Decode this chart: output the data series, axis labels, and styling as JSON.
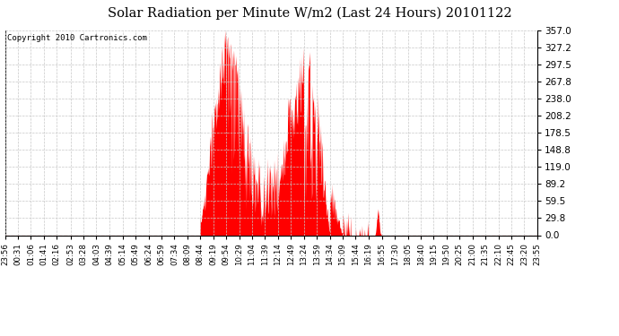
{
  "title": "Solar Radiation per Minute W/m2 (Last 24 Hours) 20101122",
  "copyright": "Copyright 2010 Cartronics.com",
  "y_ticks": [
    0.0,
    29.8,
    59.5,
    89.2,
    119.0,
    148.8,
    178.5,
    208.2,
    238.0,
    267.8,
    297.5,
    327.2,
    357.0
  ],
  "y_max": 357.0,
  "y_min": 0.0,
  "bar_color": "#ff0000",
  "dashed_line_color": "#ff0000",
  "grid_color": "#c8c8c8",
  "bg_color": "#ffffff",
  "x_labels": [
    "23:56",
    "00:31",
    "01:06",
    "01:41",
    "02:16",
    "02:53",
    "03:28",
    "04:03",
    "04:39",
    "05:14",
    "05:49",
    "06:24",
    "06:59",
    "07:34",
    "08:09",
    "08:44",
    "09:19",
    "09:54",
    "10:29",
    "11:04",
    "11:39",
    "12:14",
    "12:49",
    "13:24",
    "13:59",
    "14:34",
    "15:09",
    "15:44",
    "16:19",
    "16:55",
    "17:30",
    "18:05",
    "18:40",
    "19:15",
    "19:50",
    "20:25",
    "21:00",
    "21:35",
    "22:10",
    "22:45",
    "23:20",
    "23:55"
  ]
}
